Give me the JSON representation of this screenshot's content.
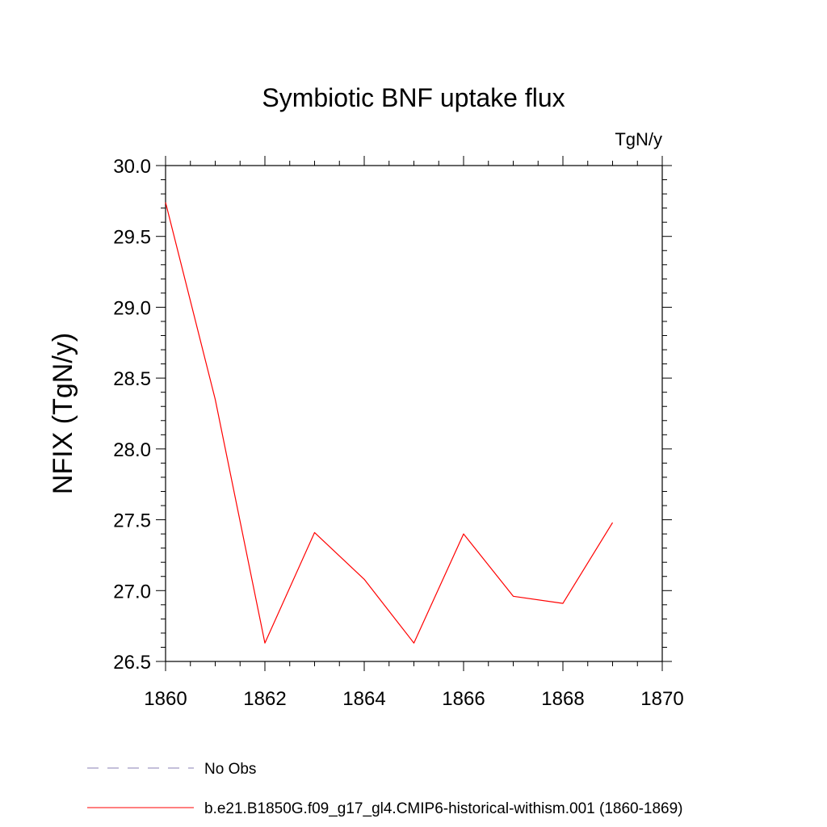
{
  "chart_data": {
    "type": "line",
    "title": "Symbiotic BNF uptake flux",
    "unit_label": "TgN/y",
    "ylabel": "NFIX  (TgN/y)",
    "xlabel": "",
    "xlim": [
      1860,
      1870
    ],
    "ylim": [
      26.5,
      30.0
    ],
    "x_ticks": [
      1860,
      1862,
      1864,
      1866,
      1868,
      1870
    ],
    "x_tick_labels": [
      "1860",
      "1862",
      "1864",
      "1866",
      "1868",
      "1870"
    ],
    "y_ticks": [
      26.5,
      27.0,
      27.5,
      28.0,
      28.5,
      29.0,
      29.5,
      30.0
    ],
    "y_tick_labels": [
      "26.5",
      "27.0",
      "27.5",
      "28.0",
      "28.5",
      "29.0",
      "29.5",
      "30.0"
    ],
    "grid": false,
    "legend_position": "bottom",
    "series": [
      {
        "name": "No Obs",
        "color": "#8a7fb5",
        "style": "dashed",
        "x": [],
        "y": []
      },
      {
        "name": "b.e21.B1850G.f09_g17_gl4.CMIP6-historical-withism.001 (1860-1869)",
        "color": "#ff0000",
        "style": "solid",
        "x": [
          1860,
          1861,
          1862,
          1863,
          1864,
          1865,
          1866,
          1867,
          1868,
          1869
        ],
        "y": [
          29.74,
          28.35,
          26.63,
          27.41,
          27.08,
          26.63,
          27.4,
          26.96,
          26.91,
          27.48
        ]
      }
    ]
  }
}
